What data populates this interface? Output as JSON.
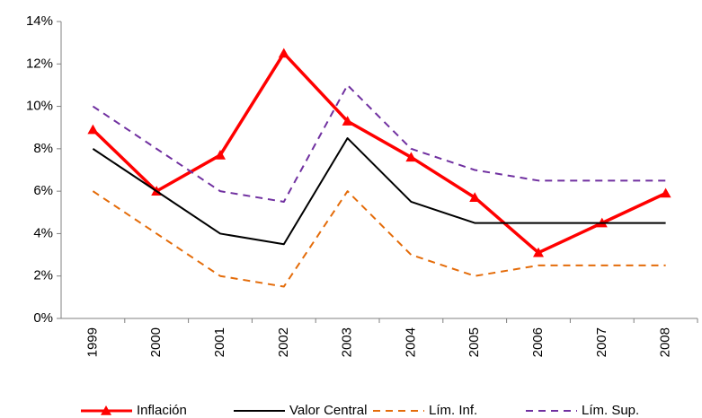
{
  "chart_data": {
    "type": "line",
    "categories": [
      "1999",
      "2000",
      "2001",
      "2002",
      "2003",
      "2004",
      "2005",
      "2006",
      "2007",
      "2008"
    ],
    "series": [
      {
        "name": "Inflación",
        "color": "#ff0000",
        "width": 3.5,
        "dash": "none",
        "marker": "triangle",
        "values": [
          8.9,
          6.0,
          7.7,
          12.5,
          9.3,
          7.6,
          5.7,
          3.1,
          4.5,
          5.9
        ]
      },
      {
        "name": "Valor Central",
        "color": "#000000",
        "width": 2,
        "dash": "none",
        "marker": "none",
        "values": [
          8,
          6,
          4,
          3.5,
          8.5,
          5.5,
          4.5,
          4.5,
          4.5,
          4.5
        ]
      },
      {
        "name": "Lím. Inf.",
        "color": "#e46c0a",
        "width": 2,
        "dash": "8 6",
        "marker": "none",
        "values": [
          6,
          4,
          2,
          1.5,
          6,
          3,
          2,
          2.5,
          2.5,
          2.5
        ]
      },
      {
        "name": "Lím. Sup.",
        "color": "#7030a0",
        "width": 2,
        "dash": "8 6",
        "marker": "none",
        "values": [
          10,
          8,
          6,
          5.5,
          11,
          8,
          7,
          6.5,
          6.5,
          6.5
        ]
      }
    ],
    "ylim": [
      0,
      14
    ],
    "yticks": [
      {
        "value": 0,
        "label": "0%"
      },
      {
        "value": 2,
        "label": "2%"
      },
      {
        "value": 4,
        "label": "4%"
      },
      {
        "value": 6,
        "label": "6%"
      },
      {
        "value": 8,
        "label": "8%"
      },
      {
        "value": 10,
        "label": "10%"
      },
      {
        "value": 12,
        "label": "12%"
      },
      {
        "value": 14,
        "label": "14%"
      }
    ],
    "grid": false,
    "legend": "bottom"
  }
}
